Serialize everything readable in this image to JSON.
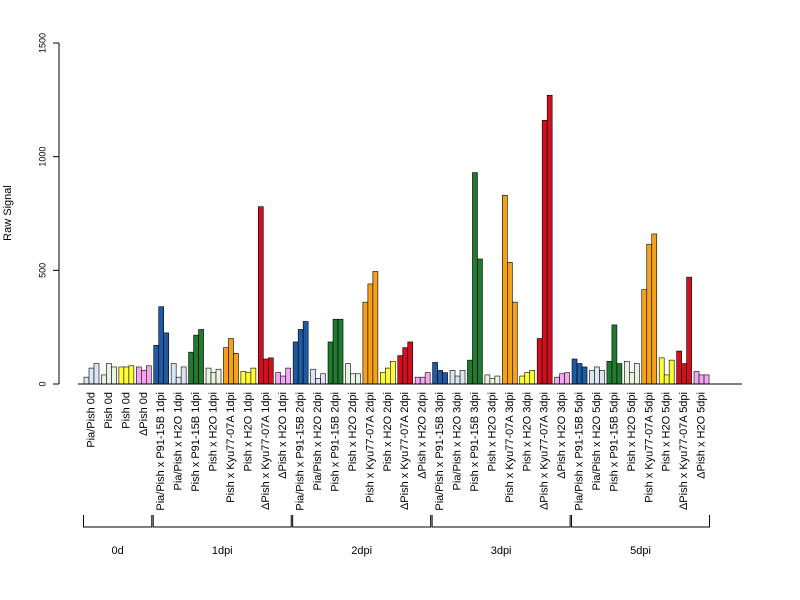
{
  "chart_data": {
    "type": "bar",
    "ylabel": "Raw Signal",
    "ylim": [
      0,
      1500
    ],
    "yticks": [
      0,
      500,
      1000,
      1500
    ],
    "grid": false,
    "legend": "none",
    "groups": [
      {
        "label": "Pia/Pish 0d",
        "color": "#dbe6f5",
        "values": [
          30,
          70,
          90
        ]
      },
      {
        "label": "Pish 0d",
        "color": "#e8f3e1",
        "values": [
          40,
          90,
          75
        ]
      },
      {
        "label": "Pish 0d",
        "color": "#ffff33",
        "values": [
          75,
          75,
          80
        ]
      },
      {
        "label": "ΔPish 0d",
        "color": "#f5a6f0",
        "values": [
          75,
          60,
          80
        ]
      },
      {
        "label": "Pia/Pish x P91-15B 1dpi",
        "color": "#1f5aa3",
        "values": [
          170,
          340,
          225
        ]
      },
      {
        "label": "Pia/Pish x H2O 1dpi",
        "color": "#dbe6f5",
        "values": [
          90,
          30,
          75
        ]
      },
      {
        "label": "Pish x P91-15B 1dpi",
        "color": "#217a30",
        "values": [
          140,
          215,
          240
        ]
      },
      {
        "label": "Pish x H2O 1dpi",
        "color": "#e8f3e1",
        "values": [
          70,
          50,
          65
        ]
      },
      {
        "label": "Pish x Kyu77-07A 1dpi",
        "color": "#f5a11c",
        "values": [
          160,
          200,
          135
        ]
      },
      {
        "label": "Pish x H2O 1dpi",
        "color": "#ffff33",
        "values": [
          55,
          50,
          70
        ]
      },
      {
        "label": "ΔPish x Kyu77-07A 1dpi",
        "color": "#d10f1f",
        "values": [
          780,
          110,
          115
        ]
      },
      {
        "label": "ΔPish x H2O 1dpi",
        "color": "#f5a6f0",
        "values": [
          50,
          35,
          70
        ]
      },
      {
        "label": "Pia/Pish x P91-15B 2dpi",
        "color": "#1f5aa3",
        "values": [
          185,
          240,
          275
        ]
      },
      {
        "label": "Pia/Pish x H2O 2dpi",
        "color": "#dbe6f5",
        "values": [
          65,
          25,
          45
        ]
      },
      {
        "label": "Pish x P91-15B 2dpi",
        "color": "#217a30",
        "values": [
          185,
          285,
          285
        ]
      },
      {
        "label": "Pish x H2O 2dpi",
        "color": "#e8f3e1",
        "values": [
          90,
          45,
          45
        ]
      },
      {
        "label": "Pish x Kyu77-07A 2dpi",
        "color": "#f5a11c",
        "values": [
          360,
          440,
          495
        ]
      },
      {
        "label": "Pish x H2O 2dpi",
        "color": "#ffff33",
        "values": [
          50,
          70,
          100
        ]
      },
      {
        "label": "ΔPish x Kyu77-07A 2dpi",
        "color": "#d10f1f",
        "values": [
          125,
          160,
          185
        ]
      },
      {
        "label": "ΔPish x H2O 2dpi",
        "color": "#f5a6f0",
        "values": [
          30,
          30,
          50
        ]
      },
      {
        "label": "Pia/Pish x P91-15B 3dpi",
        "color": "#1f5aa3",
        "values": [
          95,
          60,
          50
        ]
      },
      {
        "label": "Pia/Pish x H2O 3dpi",
        "color": "#dbe6f5",
        "values": [
          60,
          35,
          60
        ]
      },
      {
        "label": "Pish x P91-15B 3dpi",
        "color": "#217a30",
        "values": [
          105,
          930,
          550
        ]
      },
      {
        "label": "Pish x H2O 3dpi",
        "color": "#e8f3e1",
        "values": [
          40,
          25,
          35
        ]
      },
      {
        "label": "Pish x Kyu77-07A 3dpi",
        "color": "#f5a11c",
        "values": [
          830,
          535,
          360
        ]
      },
      {
        "label": "Pish x H2O 3dpi",
        "color": "#ffff33",
        "values": [
          35,
          50,
          60
        ]
      },
      {
        "label": "ΔPish x Kyu77-07A 3dpi",
        "color": "#d10f1f",
        "values": [
          200,
          1160,
          1270
        ]
      },
      {
        "label": "ΔPish x H2O 3dpi",
        "color": "#f5a6f0",
        "values": [
          30,
          45,
          50
        ]
      },
      {
        "label": "Pia/Pish x P91-15B 5dpi",
        "color": "#1f5aa3",
        "values": [
          110,
          90,
          75
        ]
      },
      {
        "label": "Pia/Pish x H2O 5dpi",
        "color": "#dbe6f5",
        "values": [
          60,
          75,
          60
        ]
      },
      {
        "label": "Pish x P91-15B 5dpi",
        "color": "#217a30",
        "values": [
          100,
          260,
          90
        ]
      },
      {
        "label": "Pish x H2O 5dpi",
        "color": "#e8f3e1",
        "values": [
          100,
          50,
          90
        ]
      },
      {
        "label": "Pish x Kyu77-07A 5dpi",
        "color": "#f5a11c",
        "values": [
          415,
          615,
          660
        ]
      },
      {
        "label": "Pish x H2O 5dpi",
        "color": "#ffff33",
        "values": [
          115,
          40,
          105
        ]
      },
      {
        "label": "ΔPish x Kyu77-07A 5dpi",
        "color": "#d10f1f",
        "values": [
          145,
          90,
          470
        ]
      },
      {
        "label": "ΔPish x H2O 5dpi",
        "color": "#f5a6f0",
        "values": [
          55,
          40,
          40
        ]
      }
    ],
    "timepoints": [
      {
        "label": "0d",
        "first": 0,
        "last": 3
      },
      {
        "label": "1dpi",
        "first": 4,
        "last": 11
      },
      {
        "label": "2dpi",
        "first": 12,
        "last": 19
      },
      {
        "label": "3dpi",
        "first": 20,
        "last": 27
      },
      {
        "label": "5dpi",
        "first": 28,
        "last": 35
      }
    ]
  }
}
